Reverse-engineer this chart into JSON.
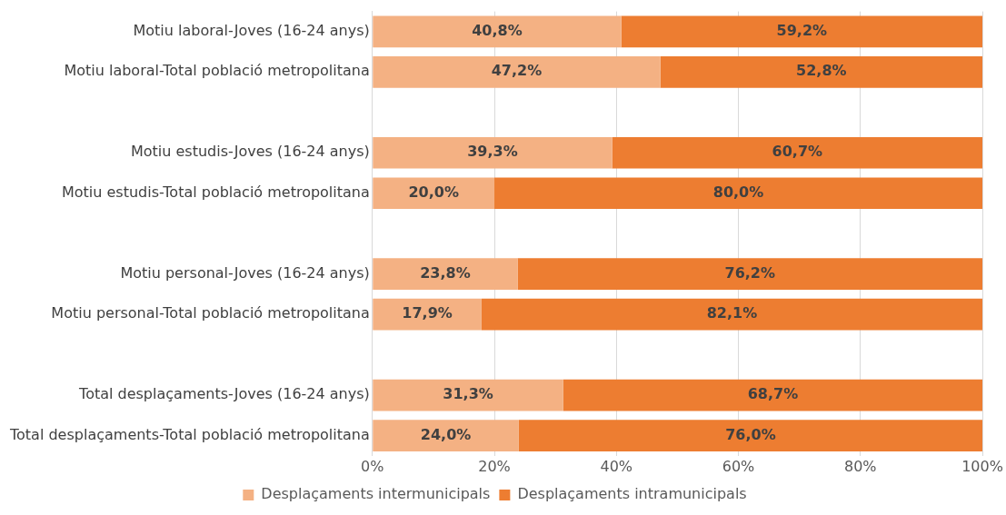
{
  "chart_data": {
    "type": "bar",
    "orientation": "horizontal",
    "stacked": true,
    "categories": [
      "Motiu laboral-Joves (16-24 anys)",
      "Motiu laboral-Total població metropolitana",
      null,
      "Motiu estudis-Joves (16-24 anys)",
      "Motiu estudis-Total població metropolitana",
      null,
      "Motiu personal-Joves (16-24 anys)",
      "Motiu personal-Total població metropolitana",
      null,
      "Total desplaçaments-Joves (16-24 anys)",
      "Total desplaçaments-Total població metropolitana"
    ],
    "series": [
      {
        "name": "Desplaçaments intermunicipals",
        "color": "#f4b183",
        "values": [
          40.8,
          47.2,
          null,
          39.3,
          20.0,
          null,
          23.8,
          17.9,
          null,
          31.3,
          24.0
        ],
        "value_labels": [
          "40,8%",
          "47,2%",
          null,
          "39,3%",
          "20,0%",
          null,
          "23,8%",
          "17,9%",
          null,
          "31,3%",
          "24,0%"
        ]
      },
      {
        "name": "Desplaçaments intramunicipals",
        "color": "#ed7d31",
        "values": [
          59.2,
          52.8,
          null,
          60.7,
          80.0,
          null,
          76.2,
          82.1,
          null,
          68.7,
          76.0
        ],
        "value_labels": [
          "59,2%",
          "52,8%",
          null,
          "60,7%",
          "80,0%",
          null,
          "76,2%",
          "82,1%",
          null,
          "68,7%",
          "76,0%"
        ]
      }
    ],
    "xlim": [
      0,
      100
    ],
    "xticks": [
      {
        "value": 0,
        "label": "0%"
      },
      {
        "value": 20,
        "label": "20%"
      },
      {
        "value": 40,
        "label": "40%"
      },
      {
        "value": 60,
        "label": "60%"
      },
      {
        "value": 80,
        "label": "80%"
      },
      {
        "value": 100,
        "label": "100%"
      }
    ],
    "grid": "x",
    "legend": "bottom"
  }
}
